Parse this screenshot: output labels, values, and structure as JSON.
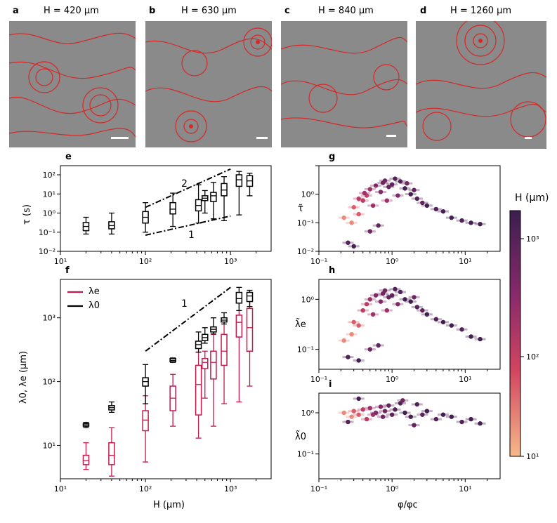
{
  "panels": {
    "a": {
      "letter": "a",
      "title": "H = 420 µm"
    },
    "b": {
      "letter": "b",
      "title": "H = 630 µm"
    },
    "c": {
      "letter": "c",
      "title": "H = 840 µm"
    },
    "d": {
      "letter": "d",
      "title": "H = 1260 µm"
    },
    "e": {
      "letter": "e"
    },
    "f": {
      "letter": "f"
    },
    "g": {
      "letter": "g"
    },
    "h": {
      "letter": "h"
    },
    "i": {
      "letter": "i"
    }
  },
  "axis_text": {
    "e_ylabel": "τ (s)",
    "f_ylabel": "λ0, λe (µm)",
    "f_xlabel": "H (µm)",
    "g_ylabel": "τ̃",
    "h_ylabel": "λ̃e",
    "i_ylabel": "λ̃0",
    "i_xlabel": "φ/φc",
    "slope_e_2": "2",
    "slope_e_1": "1",
    "slope_f_1": "1",
    "legend_e": "λe",
    "legend_0": "λ0",
    "colorbar_label": "H (µm)",
    "colorbar_ticks": [
      "10³",
      "10²",
      "10¹"
    ]
  },
  "colors": {
    "red": "#c9184a",
    "black": "#000000",
    "stream": "#d62828"
  },
  "chart_data": [
    {
      "type": "box",
      "panel": "e",
      "xscale": "log",
      "yscale": "log",
      "xlim": [
        10,
        3000
      ],
      "ylim": [
        0.01,
        300
      ],
      "xticks": [
        "10¹",
        "10²",
        "10³"
      ],
      "yticks": [
        "10⁻²",
        "10⁻¹",
        "10⁰",
        "10¹",
        "10²"
      ],
      "ylabel": "τ (s)",
      "series": [
        {
          "name": "τ",
          "color": "#000000",
          "boxes": [
            {
              "x": 20,
              "lo": 0.08,
              "q1": 0.12,
              "med": 0.2,
              "q3": 0.32,
              "hi": 0.6
            },
            {
              "x": 40,
              "lo": 0.08,
              "q1": 0.15,
              "med": 0.22,
              "q3": 0.35,
              "hi": 1.0
            },
            {
              "x": 100,
              "lo": 0.1,
              "q1": 0.3,
              "med": 0.6,
              "q3": 1.2,
              "hi": 3.5
            },
            {
              "x": 210,
              "lo": 0.2,
              "q1": 0.9,
              "med": 1.6,
              "q3": 3.5,
              "hi": 11
            },
            {
              "x": 420,
              "lo": 0.3,
              "q1": 1.3,
              "med": 2.5,
              "q3": 5.0,
              "hi": 30
            },
            {
              "x": 500,
              "lo": 1.0,
              "q1": 4.5,
              "med": 6.0,
              "q3": 8.0,
              "hi": 15
            },
            {
              "x": 630,
              "lo": 0.5,
              "q1": 4.0,
              "med": 8.0,
              "q3": 12,
              "hi": 40
            },
            {
              "x": 840,
              "lo": 0.4,
              "q1": 8.0,
              "med": 16,
              "q3": 35,
              "hi": 80
            },
            {
              "x": 1260,
              "lo": 0.8,
              "q1": 25,
              "med": 55,
              "q3": 100,
              "hi": 150
            },
            {
              "x": 1680,
              "lo": 8,
              "q1": 25,
              "med": 48,
              "q3": 90,
              "hi": 120
            }
          ]
        }
      ],
      "guides": [
        {
          "label": "2",
          "slope": 2,
          "x": [
            100,
            1000
          ],
          "y": [
            2,
            200
          ]
        },
        {
          "label": "1",
          "slope": 1,
          "x": [
            100,
            1000
          ],
          "y": [
            0.07,
            0.7
          ]
        }
      ]
    },
    {
      "type": "box",
      "panel": "f",
      "xscale": "log",
      "yscale": "log",
      "xlim": [
        10,
        3000
      ],
      "ylim": [
        3,
        4000
      ],
      "xticks": [
        "10¹",
        "10²",
        "10³"
      ],
      "yticks": [
        "10¹",
        "10²",
        "10³"
      ],
      "xlabel": "H (µm)",
      "ylabel": "λ0, λe (µm)",
      "series": [
        {
          "name": "λe",
          "color": "#c9184a",
          "boxes": [
            {
              "x": 20,
              "lo": 4.2,
              "q1": 5,
              "med": 5.8,
              "q3": 7,
              "hi": 11
            },
            {
              "x": 40,
              "lo": 3.3,
              "q1": 5,
              "med": 7,
              "q3": 11,
              "hi": 19
            },
            {
              "x": 100,
              "lo": 5.5,
              "q1": 17,
              "med": 25,
              "q3": 35,
              "hi": 60
            },
            {
              "x": 210,
              "lo": 20,
              "q1": 35,
              "med": 55,
              "q3": 85,
              "hi": 130
            },
            {
              "x": 420,
              "lo": 13,
              "q1": 30,
              "med": 90,
              "q3": 180,
              "hi": 290
            },
            {
              "x": 500,
              "lo": 55,
              "q1": 160,
              "med": 200,
              "q3": 230,
              "hi": 300
            },
            {
              "x": 630,
              "lo": 20,
              "q1": 110,
              "med": 200,
              "q3": 300,
              "hi": 550
            },
            {
              "x": 840,
              "lo": 45,
              "q1": 180,
              "med": 300,
              "q3": 550,
              "hi": 900
            },
            {
              "x": 1260,
              "lo": 48,
              "q1": 500,
              "med": 850,
              "q3": 1100,
              "hi": 1700
            },
            {
              "x": 1680,
              "lo": 85,
              "q1": 300,
              "med": 700,
              "q3": 1400,
              "hi": 2500
            }
          ]
        },
        {
          "name": "λ0",
          "color": "#000000",
          "boxes": [
            {
              "x": 20,
              "lo": 19,
              "q1": 20,
              "med": 21,
              "q3": 22,
              "hi": 23
            },
            {
              "x": 40,
              "lo": 33,
              "q1": 36,
              "med": 39,
              "q3": 42,
              "hi": 48
            },
            {
              "x": 100,
              "lo": 45,
              "q1": 85,
              "med": 100,
              "q3": 115,
              "hi": 185
            },
            {
              "x": 210,
              "lo": 200,
              "q1": 205,
              "med": 215,
              "q3": 230,
              "hi": 235
            },
            {
              "x": 420,
              "lo": 290,
              "q1": 330,
              "med": 380,
              "q3": 430,
              "hi": 600
            },
            {
              "x": 500,
              "lo": 400,
              "q1": 440,
              "med": 490,
              "q3": 550,
              "hi": 700
            },
            {
              "x": 630,
              "lo": 560,
              "q1": 600,
              "med": 660,
              "q3": 720,
              "hi": 1000
            },
            {
              "x": 840,
              "lo": 800,
              "q1": 860,
              "med": 920,
              "q3": 1000,
              "hi": 1200
            },
            {
              "x": 1260,
              "lo": 1300,
              "q1": 1700,
              "med": 2000,
              "q3": 2500,
              "hi": 3000
            },
            {
              "x": 1680,
              "lo": 1500,
              "q1": 1800,
              "med": 2200,
              "q3": 2500,
              "hi": 2700
            }
          ]
        }
      ],
      "guides": [
        {
          "label": "1",
          "slope": 1,
          "x": [
            100,
            1000
          ],
          "y": [
            300,
            3000
          ]
        }
      ]
    },
    {
      "type": "scatter",
      "panel": "g",
      "xscale": "log",
      "yscale": "log",
      "xlim": [
        0.1,
        30
      ],
      "ylim": [
        0.01,
        10
      ],
      "xticks": [
        "10⁻¹",
        "10⁰",
        "10¹"
      ],
      "yticks": [
        "10⁻²",
        "10⁻¹",
        "10⁰"
      ],
      "ylabel": "τ̃",
      "color_by": "H (µm)",
      "points": [
        [
          0.22,
          0.15,
          20
        ],
        [
          0.28,
          0.1,
          20
        ],
        [
          0.3,
          0.35,
          40
        ],
        [
          0.35,
          0.2,
          40
        ],
        [
          0.4,
          0.6,
          100
        ],
        [
          0.45,
          0.9,
          100
        ],
        [
          0.5,
          1.5,
          210
        ],
        [
          0.55,
          0.4,
          210
        ],
        [
          0.6,
          2.0,
          420
        ],
        [
          0.7,
          1.2,
          420
        ],
        [
          0.75,
          2.5,
          630
        ],
        [
          0.8,
          3.0,
          630
        ],
        [
          0.9,
          1.8,
          840
        ],
        [
          1.0,
          2.2,
          840
        ],
        [
          1.1,
          3.5,
          1260
        ],
        [
          1.3,
          2.8,
          1260
        ],
        [
          1.5,
          1.6,
          1680
        ],
        [
          1.8,
          1.0,
          1680
        ],
        [
          2.2,
          0.7,
          1260
        ],
        [
          2.6,
          0.5,
          840
        ],
        [
          3.0,
          0.4,
          1680
        ],
        [
          4.0,
          0.3,
          1260
        ],
        [
          5.0,
          0.25,
          1680
        ],
        [
          6.5,
          0.15,
          1680
        ],
        [
          9.0,
          0.12,
          1260
        ],
        [
          12,
          0.1,
          1680
        ],
        [
          16,
          0.09,
          1680
        ],
        [
          0.25,
          0.02,
          1260
        ],
        [
          0.3,
          0.015,
          1680
        ],
        [
          0.5,
          0.05,
          630
        ],
        [
          0.65,
          0.08,
          840
        ],
        [
          1.2,
          0.9,
          420
        ],
        [
          0.85,
          0.6,
          210
        ],
        [
          1.6,
          2.4,
          630
        ],
        [
          2.0,
          1.4,
          840
        ],
        [
          0.35,
          0.7,
          100
        ],
        [
          0.42,
          1.1,
          210
        ]
      ]
    },
    {
      "type": "scatter",
      "panel": "h",
      "xscale": "log",
      "yscale": "log",
      "xlim": [
        0.1,
        30
      ],
      "ylim": [
        0.04,
        2.5
      ],
      "xticks": [
        "10⁻¹",
        "10⁰",
        "10¹"
      ],
      "yticks": [
        "10⁻¹",
        "10⁰"
      ],
      "ylabel": "λ̃e",
      "color_by": "H (µm)",
      "points": [
        [
          0.22,
          0.15,
          20
        ],
        [
          0.28,
          0.2,
          20
        ],
        [
          0.3,
          0.35,
          40
        ],
        [
          0.35,
          0.3,
          40
        ],
        [
          0.4,
          0.6,
          100
        ],
        [
          0.45,
          0.8,
          100
        ],
        [
          0.5,
          1.0,
          210
        ],
        [
          0.55,
          0.5,
          210
        ],
        [
          0.6,
          1.2,
          420
        ],
        [
          0.7,
          0.9,
          420
        ],
        [
          0.75,
          1.3,
          630
        ],
        [
          0.8,
          1.5,
          630
        ],
        [
          0.9,
          1.1,
          840
        ],
        [
          1.0,
          1.2,
          840
        ],
        [
          1.1,
          1.6,
          1260
        ],
        [
          1.3,
          1.4,
          1260
        ],
        [
          1.5,
          1.0,
          1680
        ],
        [
          1.8,
          0.9,
          1680
        ],
        [
          2.2,
          0.7,
          1260
        ],
        [
          2.6,
          0.6,
          840
        ],
        [
          3.0,
          0.5,
          1680
        ],
        [
          4.0,
          0.4,
          1260
        ],
        [
          5.0,
          0.35,
          1680
        ],
        [
          6.5,
          0.3,
          1680
        ],
        [
          9.0,
          0.25,
          1260
        ],
        [
          12,
          0.18,
          1680
        ],
        [
          16,
          0.16,
          1680
        ],
        [
          0.25,
          0.07,
          1260
        ],
        [
          0.35,
          0.06,
          1680
        ],
        [
          0.5,
          0.1,
          630
        ],
        [
          0.65,
          0.12,
          840
        ],
        [
          1.2,
          0.8,
          420
        ],
        [
          0.85,
          0.6,
          210
        ],
        [
          2.0,
          1.1,
          630
        ]
      ]
    },
    {
      "type": "scatter",
      "panel": "i",
      "xscale": "log",
      "yscale": "log",
      "xlim": [
        0.1,
        30
      ],
      "ylim": [
        0.025,
        3
      ],
      "xticks": [
        "10⁻¹",
        "10⁰",
        "10¹"
      ],
      "yticks": [
        "10⁻¹",
        "10⁰"
      ],
      "xlabel": "φ/φc",
      "ylabel": "λ̃0",
      "color_by": "H (µm)",
      "points": [
        [
          0.22,
          1.0,
          20
        ],
        [
          0.28,
          0.8,
          20
        ],
        [
          0.3,
          1.1,
          40
        ],
        [
          0.35,
          0.9,
          40
        ],
        [
          0.4,
          1.2,
          100
        ],
        [
          0.45,
          0.7,
          100
        ],
        [
          0.5,
          1.3,
          210
        ],
        [
          0.55,
          0.9,
          210
        ],
        [
          0.6,
          1.0,
          420
        ],
        [
          0.7,
          1.4,
          420
        ],
        [
          0.75,
          0.8,
          630
        ],
        [
          0.8,
          1.1,
          630
        ],
        [
          0.9,
          1.5,
          840
        ],
        [
          1.0,
          0.9,
          840
        ],
        [
          1.1,
          1.2,
          1260
        ],
        [
          1.3,
          1.7,
          1260
        ],
        [
          1.5,
          1.0,
          1680
        ],
        [
          1.8,
          0.8,
          1680
        ],
        [
          2.2,
          1.6,
          1260
        ],
        [
          2.6,
          0.9,
          840
        ],
        [
          3.0,
          1.1,
          1680
        ],
        [
          4.0,
          0.7,
          1260
        ],
        [
          5.0,
          0.9,
          1680
        ],
        [
          6.5,
          0.8,
          1680
        ],
        [
          9.0,
          0.6,
          1260
        ],
        [
          12,
          0.7,
          1680
        ],
        [
          16,
          0.55,
          1680
        ],
        [
          0.25,
          0.6,
          1260
        ],
        [
          0.35,
          2.2,
          1680
        ],
        [
          2.0,
          0.5,
          840
        ],
        [
          1.4,
          2.0,
          630
        ]
      ]
    }
  ]
}
